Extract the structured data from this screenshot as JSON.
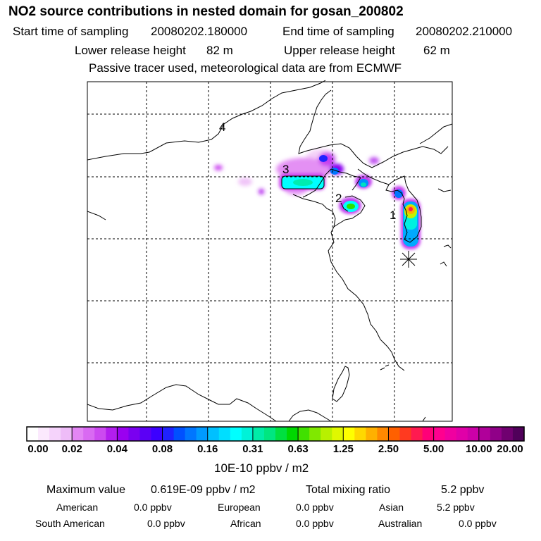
{
  "header": {
    "title": "NO2 source contributions in nested domain for gosan_200802",
    "start_label": "Start time of sampling",
    "start_value": "20080202.180000",
    "end_label": "End time of sampling",
    "end_value": "20080202.210000",
    "lower_label": "Lower release height",
    "lower_value": "82 m",
    "upper_label": "Upper release height",
    "upper_value": "62 m",
    "notice": "Passive tracer used, meteorological data are from ECMWF"
  },
  "map": {
    "source_labels": [
      "1",
      "2",
      "3",
      "4"
    ],
    "receptor_marker": "star-asterisk"
  },
  "colorbar": {
    "ticks": [
      "0.00",
      "0.02",
      "0.04",
      "0.08",
      "0.16",
      "0.31",
      "0.63",
      "1.25",
      "2.50",
      "5.00",
      "10.00",
      "20.00"
    ],
    "colors": [
      "#ffffff",
      "#fbe9fd",
      "#f5d3fb",
      "#eebcf8",
      "#e386f4",
      "#d96af2",
      "#cc4af0",
      "#b31eee",
      "#9a00f0",
      "#7a00f0",
      "#5b00f5",
      "#3c00ff",
      "#1f22ff",
      "#0050ff",
      "#0076ff",
      "#009aff",
      "#00c0ff",
      "#00deff",
      "#00ffff",
      "#00f2d8",
      "#00eca8",
      "#00e680",
      "#00e040",
      "#00d800",
      "#40e000",
      "#80e800",
      "#b8f000",
      "#e0f800",
      "#ffff00",
      "#ffd800",
      "#ffb000",
      "#ff8800",
      "#ff6000",
      "#ff3a20",
      "#ff1a50",
      "#ff0078",
      "#ff008f",
      "#f000a0",
      "#e000a8",
      "#cc00a8",
      "#b0009a",
      "#900088",
      "#700070",
      "#50005a"
    ],
    "units": "10E-10 ppbv / m2"
  },
  "summary": {
    "max_label": "Maximum value",
    "max_value": "0.619E-09 ppbv / m2",
    "total_label": "Total mixing ratio",
    "total_value": "5.2 ppbv",
    "regions": [
      {
        "name": "American",
        "value": "0.0 ppbv"
      },
      {
        "name": "European",
        "value": "0.0 ppbv"
      },
      {
        "name": "Asian",
        "value": "5.2 ppbv"
      },
      {
        "name": "South American",
        "value": "0.0 ppbv"
      },
      {
        "name": "African",
        "value": "0.0 ppbv"
      },
      {
        "name": "Australian",
        "value": "0.0 ppbv"
      }
    ]
  }
}
